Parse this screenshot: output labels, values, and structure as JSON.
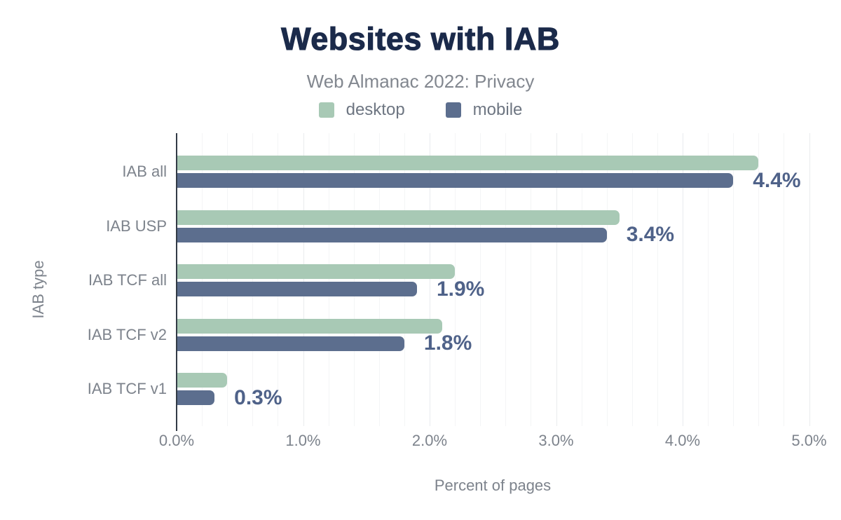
{
  "chart_data": {
    "type": "bar",
    "orientation": "horizontal",
    "title": "Websites with IAB",
    "subtitle": "Web Almanac 2022: Privacy",
    "categories": [
      "IAB all",
      "IAB USP",
      "IAB TCF all",
      "IAB TCF v2",
      "IAB TCF v1"
    ],
    "series": [
      {
        "name": "desktop",
        "color": "#a8c9b5",
        "values": [
          4.6,
          3.5,
          2.2,
          2.1,
          0.4
        ]
      },
      {
        "name": "mobile",
        "color": "#5c6e8e",
        "values": [
          4.4,
          3.4,
          1.9,
          1.8,
          0.3
        ]
      }
    ],
    "data_labels": [
      "4.4%",
      "3.4%",
      "1.9%",
      "1.8%",
      "0.3%"
    ],
    "data_labels_series": "mobile",
    "xlabel": "Percent of pages",
    "ylabel": "IAB type",
    "xlim": [
      0,
      5
    ],
    "x_ticks": [
      0,
      1,
      2,
      3,
      4,
      5
    ],
    "x_tick_labels": [
      "0.0%",
      "1.0%",
      "2.0%",
      "3.0%",
      "4.0%",
      "5.0%"
    ],
    "minor_grid_step_percent": 0.2,
    "grid": "vertical",
    "legend_position": "top-center"
  },
  "colors": {
    "title": "#1b2a4a",
    "subtitle": "#82878f",
    "axis_line": "#333b46",
    "text_gray": "#7d838c",
    "data_label": "#4f6289",
    "grid_minor": "#f4f5f6",
    "grid_major": "#e9ebee",
    "background": "#ffffff"
  }
}
